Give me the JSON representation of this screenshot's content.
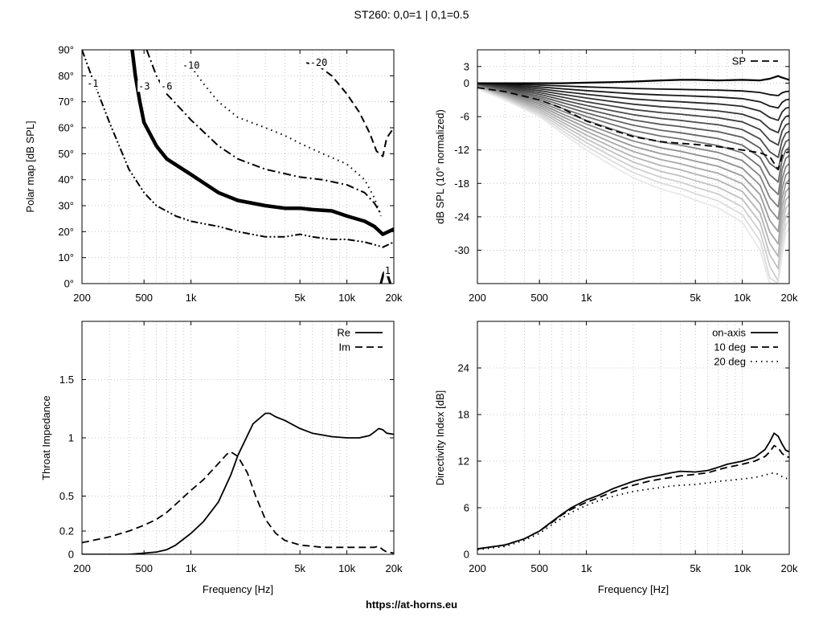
{
  "title": "ST260: 0,0=1 | 0,1=0.5",
  "footer": "https://at-horns.eu",
  "colors": {
    "background": "#ffffff",
    "ink": "#000000",
    "grid": "#b8b8b8"
  },
  "chart_data": [
    {
      "id": "polar",
      "type": "line",
      "subtype": "contour",
      "ylabel": "Polar map [dB SPL]",
      "xlabel": "",
      "xscale": "log",
      "xlim": [
        200,
        20000
      ],
      "ylim": [
        0,
        90
      ],
      "xticks": [
        200,
        500,
        1000,
        5000,
        10000,
        20000
      ],
      "xtick_labels": [
        "200",
        "500",
        "1k",
        "5k",
        "10k",
        "20k"
      ],
      "yticks": [
        0,
        10,
        20,
        30,
        40,
        50,
        60,
        70,
        80,
        90
      ],
      "ytick_labels": [
        "0°",
        "10°",
        "20°",
        "30°",
        "40°",
        "50°",
        "60°",
        "70°",
        "80°",
        "90°"
      ],
      "grid": true,
      "contours": [
        {
          "label": "-1",
          "style": "dash-dot-dot",
          "width": 2,
          "label_at": [
            215,
            77
          ],
          "points": [
            [
              200,
              90
            ],
            [
              230,
              80
            ],
            [
              300,
              62
            ],
            [
              400,
              44
            ],
            [
              500,
              35
            ],
            [
              600,
              30
            ],
            [
              800,
              26
            ],
            [
              1000,
              24
            ],
            [
              1500,
              22
            ],
            [
              2000,
              20
            ],
            [
              3000,
              18
            ],
            [
              4000,
              18
            ],
            [
              5000,
              19
            ],
            [
              6000,
              18
            ],
            [
              8000,
              17
            ],
            [
              10000,
              17
            ],
            [
              13000,
              16
            ],
            [
              15000,
              15
            ],
            [
              17000,
              14
            ],
            [
              20000,
              16
            ]
          ]
        },
        {
          "label": "-3",
          "style": "solid",
          "width": 4.5,
          "label_at": [
            460,
            76
          ],
          "points": [
            [
              410,
              95
            ],
            [
              440,
              80
            ],
            [
              470,
              70
            ],
            [
              500,
              62
            ],
            [
              600,
              53
            ],
            [
              700,
              48
            ],
            [
              1000,
              42
            ],
            [
              1500,
              35
            ],
            [
              2000,
              32
            ],
            [
              3000,
              30
            ],
            [
              4000,
              29
            ],
            [
              5000,
              29
            ],
            [
              6000,
              28.5
            ],
            [
              8000,
              28
            ],
            [
              10000,
              26
            ],
            [
              13000,
              24
            ],
            [
              15000,
              22
            ],
            [
              17000,
              19
            ],
            [
              20000,
              21
            ]
          ]
        },
        {
          "label": "-6",
          "style": "dash-dot",
          "width": 2,
          "label_at": [
            640,
            76
          ],
          "points": [
            [
              520,
              90
            ],
            [
              600,
              80
            ],
            [
              700,
              73
            ],
            [
              900,
              66
            ],
            [
              1000,
              63
            ],
            [
              1500,
              53
            ],
            [
              2000,
              48
            ],
            [
              3000,
              44
            ],
            [
              5000,
              41
            ],
            [
              7000,
              40
            ],
            [
              10000,
              38
            ],
            [
              13000,
              35
            ],
            [
              15000,
              31
            ],
            [
              16500,
              27
            ]
          ]
        },
        {
          "label": "-10",
          "style": "dotted",
          "width": 2,
          "label_at": [
            880,
            84
          ],
          "points": [
            [
              960,
              85
            ],
            [
              1200,
              77
            ],
            [
              1500,
              70
            ],
            [
              2000,
              64
            ],
            [
              3000,
              60
            ],
            [
              4000,
              57
            ],
            [
              5000,
              54
            ],
            [
              7000,
              50
            ],
            [
              10000,
              46
            ],
            [
              13000,
              40
            ],
            [
              15000,
              33
            ],
            [
              16500,
              26
            ]
          ]
        },
        {
          "label": "-20",
          "style": "dashed",
          "width": 2,
          "label_at": [
            5800,
            85
          ],
          "points": [
            [
              5500,
              85
            ],
            [
              6500,
              84
            ],
            [
              8000,
              80
            ],
            [
              10000,
              73
            ],
            [
              12000,
              66
            ],
            [
              14000,
              58
            ],
            [
              15500,
              51
            ],
            [
              17000,
              49
            ],
            [
              18000,
              56
            ],
            [
              20000,
              60
            ]
          ]
        },
        {
          "label": "1",
          "style": "solid",
          "width": 3,
          "label_at": [
            17500,
            5
          ],
          "points": [
            [
              16500,
              0
            ],
            [
              17200,
              4
            ],
            [
              17800,
              5
            ],
            [
              18300,
              3
            ],
            [
              19000,
              0
            ]
          ]
        }
      ]
    },
    {
      "id": "normalized",
      "type": "line",
      "ylabel": "dB SPL (10° normalized)",
      "xlabel": "",
      "xscale": "log",
      "xlim": [
        200,
        20000
      ],
      "ylim": [
        -36,
        6
      ],
      "xticks": [
        200,
        500,
        1000,
        5000,
        10000,
        20000
      ],
      "xtick_labels": [
        "200",
        "500",
        "1k",
        "5k",
        "10k",
        "20k"
      ],
      "yticks": [
        3,
        0,
        -6,
        -12,
        -18,
        -24,
        -30
      ],
      "ytick_labels": [
        "3",
        "0",
        "-6",
        "-12",
        "-18",
        "-24",
        "-30"
      ],
      "grid": true,
      "legend": {
        "labels": [
          "SP"
        ],
        "position": "top-right"
      },
      "series_x": [
        200,
        300,
        500,
        700,
        1000,
        1500,
        2000,
        3000,
        4000,
        5000,
        7000,
        10000,
        13000,
        15000,
        17000,
        18000,
        19000,
        20000
      ],
      "family": {
        "count": 18,
        "angle_step_deg": 5,
        "last_angle_deg": 90,
        "color_range": [
          "#000000",
          "#e8e8e8"
        ],
        "shape": [
          -0.05,
          -0.15,
          -0.3,
          -0.45,
          -0.6,
          -0.75,
          -0.85,
          -0.95,
          -1.0,
          -1.05,
          -1.12,
          -1.25,
          -1.5,
          -1.85,
          -2.0,
          -1.55,
          -1.35,
          -1.3
        ]
      },
      "series": [
        {
          "name": "SP",
          "style": "dashed",
          "values": [
            -0.8,
            -1.5,
            -3.0,
            -4.5,
            -6.8,
            -8.5,
            -9.6,
            -10.5,
            -10.8,
            -11.0,
            -11.4,
            -12.0,
            -12.5,
            -13.2,
            -15.5,
            -13.0,
            -12.5,
            -12.3
          ]
        },
        {
          "name": "",
          "style": "solid",
          "values": [
            0,
            0,
            0,
            0,
            0.1,
            0.2,
            0.3,
            0.5,
            0.6,
            0.6,
            0.5,
            0.6,
            0.5,
            0.8,
            1.3,
            1.0,
            0.8,
            0.6
          ]
        }
      ]
    },
    {
      "id": "impedance",
      "type": "line",
      "ylabel": "Throat Impedance",
      "xlabel": "Frequency [Hz]",
      "xscale": "log",
      "xlim": [
        200,
        20000
      ],
      "ylim": [
        0,
        2
      ],
      "xticks": [
        200,
        500,
        1000,
        5000,
        10000,
        20000
      ],
      "xtick_labels": [
        "200",
        "500",
        "1k",
        "5k",
        "10k",
        "20k"
      ],
      "yticks": [
        0,
        0.2,
        0.5,
        1,
        1.5
      ],
      "ytick_labels": [
        "0",
        "0.2",
        "0.5",
        "1",
        "1.5"
      ],
      "grid": true,
      "legend": {
        "labels": [
          "Re",
          "Im"
        ],
        "position": "top-right"
      },
      "series": [
        {
          "name": "Re",
          "style": "solid",
          "x": [
            200,
            400,
            500,
            600,
            700,
            800,
            1000,
            1200,
            1500,
            1800,
            2000,
            2500,
            3000,
            3200,
            3500,
            4000,
            5000,
            6000,
            8000,
            10000,
            12000,
            14000,
            15000,
            16000,
            17000,
            18000,
            20000
          ],
          "values": [
            0.0,
            0.0,
            0.01,
            0.02,
            0.04,
            0.08,
            0.18,
            0.28,
            0.45,
            0.68,
            0.85,
            1.12,
            1.21,
            1.21,
            1.18,
            1.15,
            1.08,
            1.04,
            1.01,
            1.0,
            1.0,
            1.02,
            1.05,
            1.08,
            1.07,
            1.04,
            1.03
          ]
        },
        {
          "name": "Im",
          "style": "dashed",
          "x": [
            200,
            300,
            400,
            500,
            600,
            700,
            800,
            1000,
            1200,
            1500,
            1700,
            1800,
            2000,
            2300,
            2600,
            3000,
            3500,
            4000,
            5000,
            7000,
            10000,
            14000,
            15000,
            16000,
            17000,
            18000,
            20000
          ],
          "values": [
            0.1,
            0.15,
            0.2,
            0.25,
            0.3,
            0.36,
            0.43,
            0.55,
            0.64,
            0.78,
            0.86,
            0.88,
            0.84,
            0.7,
            0.5,
            0.3,
            0.18,
            0.12,
            0.08,
            0.06,
            0.06,
            0.06,
            0.06,
            0.07,
            0.04,
            0.02,
            0.01
          ]
        }
      ]
    },
    {
      "id": "directivity",
      "type": "line",
      "ylabel": "Directivity Index [dB]",
      "xlabel": "Frequency [Hz]",
      "xscale": "log",
      "xlim": [
        200,
        20000
      ],
      "ylim": [
        0,
        30
      ],
      "xticks": [
        200,
        500,
        1000,
        5000,
        10000,
        20000
      ],
      "xtick_labels": [
        "200",
        "500",
        "1k",
        "5k",
        "10k",
        "20k"
      ],
      "yticks": [
        0,
        6,
        12,
        18,
        24
      ],
      "ytick_labels": [
        "0",
        "6",
        "12",
        "18",
        "24"
      ],
      "grid": true,
      "legend": {
        "labels": [
          "on-axis",
          "10 deg",
          "20 deg"
        ],
        "position": "top-right"
      },
      "series": [
        {
          "name": "on-axis",
          "style": "solid",
          "x": [
            200,
            300,
            400,
            500,
            600,
            700,
            800,
            1000,
            1200,
            1500,
            2000,
            2500,
            3000,
            3500,
            4000,
            5000,
            6000,
            7000,
            8000,
            10000,
            12000,
            14000,
            15000,
            16000,
            17000,
            18000,
            19000,
            20000
          ],
          "values": [
            0.7,
            1.2,
            2.0,
            3.0,
            4.2,
            5.2,
            6.0,
            7.0,
            7.6,
            8.5,
            9.4,
            9.9,
            10.2,
            10.5,
            10.7,
            10.6,
            10.8,
            11.2,
            11.6,
            12.0,
            12.5,
            13.5,
            14.5,
            15.6,
            15.2,
            14.2,
            13.4,
            13.2
          ]
        },
        {
          "name": "10 deg",
          "style": "dashed",
          "x": [
            200,
            300,
            400,
            500,
            600,
            700,
            800,
            1000,
            1200,
            1500,
            2000,
            2500,
            3000,
            3500,
            4000,
            5000,
            6000,
            7000,
            8000,
            10000,
            12000,
            14000,
            15000,
            16000,
            17000,
            18000,
            19000,
            20000
          ],
          "values": [
            0.7,
            1.2,
            2.0,
            3.0,
            4.1,
            5.1,
            5.8,
            6.7,
            7.3,
            8.1,
            8.9,
            9.4,
            9.7,
            9.9,
            10.1,
            10.3,
            10.5,
            10.9,
            11.2,
            11.6,
            12.0,
            12.6,
            13.2,
            14.0,
            13.7,
            13.0,
            12.6,
            12.5
          ]
        },
        {
          "name": "20 deg",
          "style": "dotted",
          "x": [
            200,
            300,
            400,
            500,
            600,
            700,
            800,
            1000,
            1200,
            1500,
            2000,
            2500,
            3000,
            3500,
            4000,
            5000,
            6000,
            7000,
            8000,
            10000,
            12000,
            14000,
            15000,
            16000,
            17000,
            18000,
            19000,
            20000
          ],
          "values": [
            0.6,
            1.0,
            1.8,
            2.7,
            3.8,
            4.7,
            5.4,
            6.3,
            6.9,
            7.5,
            8.1,
            8.4,
            8.6,
            8.8,
            8.9,
            9.0,
            9.2,
            9.4,
            9.5,
            9.7,
            9.9,
            10.2,
            10.4,
            10.5,
            10.3,
            10.0,
            9.8,
            9.7
          ]
        }
      ]
    }
  ]
}
